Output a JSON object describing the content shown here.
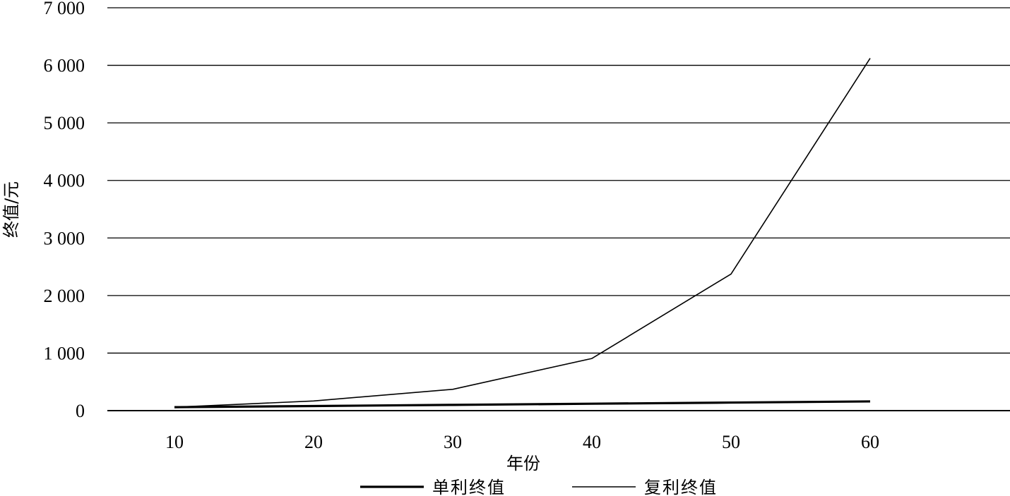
{
  "chart_data": {
    "type": "line",
    "title": "",
    "xlabel": "年份",
    "ylabel": "终值/元",
    "categories": [
      10,
      20,
      30,
      40,
      50,
      60
    ],
    "ylim": [
      0,
      7000
    ],
    "yticks": [
      0,
      1000,
      2000,
      3000,
      4000,
      5000,
      6000,
      7000
    ],
    "ytick_labels": [
      "0",
      "1 000",
      "2 000",
      "3 000",
      "4 000",
      "5 000",
      "6 000",
      "7 000"
    ],
    "grid": true,
    "legend_position": "bottom",
    "series": [
      {
        "name": "单利终值",
        "values": [
          60,
          80,
          100,
          120,
          140,
          160
        ],
        "color": "#000000",
        "style": "thick"
      },
      {
        "name": "复利终值",
        "values": [
          60,
          168,
          370,
          906,
          2373,
          6122
        ],
        "color": "#000000",
        "style": "thin"
      }
    ]
  }
}
